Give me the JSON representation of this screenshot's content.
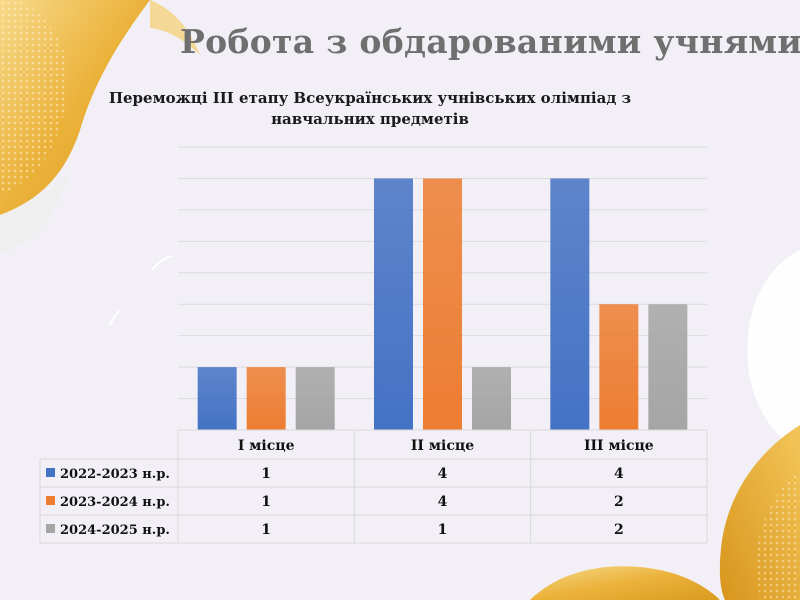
{
  "page": {
    "title": "Робота з обдарованими учнями"
  },
  "colors": {
    "series1": "#4472c4",
    "series2": "#ed7d31",
    "series3": "#a5a5a5",
    "accent": "#e9b02f",
    "title": "#6f6f6f"
  },
  "chart_data": {
    "type": "bar",
    "title": "Переможці ІІІ етапу Всеукраїнських учнівських олімпіад з навчальних предметів",
    "categories": [
      "І місце",
      "ІІ місце",
      "ІІІ місце"
    ],
    "series": [
      {
        "name": "2022-2023 н.р.",
        "values": [
          1,
          4,
          4
        ]
      },
      {
        "name": "2023-2024 н.р.",
        "values": [
          1,
          4,
          2
        ]
      },
      {
        "name": "2024-2025 н.р.",
        "values": [
          1,
          1,
          2
        ]
      }
    ],
    "ylim": [
      0,
      4.5
    ],
    "grid": true,
    "legend": "data-table-below"
  }
}
